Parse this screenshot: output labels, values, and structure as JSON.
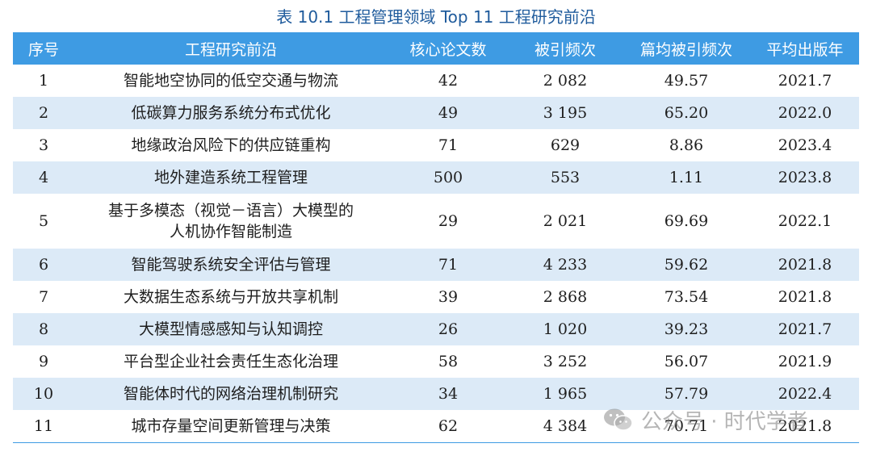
{
  "caption": "表 10.1    工程管理领域 Top 11 工程研究前沿",
  "headers": [
    "序号",
    "工程研究前沿",
    "核心论文数",
    "被引频次",
    "篇均被引频次",
    "平均出版年"
  ],
  "rows": [
    {
      "id": "1",
      "topic": "智能地空协同的低空交通与物流",
      "papers": "42",
      "citations": "2 082",
      "avg": "49.57",
      "year": "2021.7"
    },
    {
      "id": "2",
      "topic": "低碳算力服务系统分布式优化",
      "papers": "49",
      "citations": "3 195",
      "avg": "65.20",
      "year": "2022.0"
    },
    {
      "id": "3",
      "topic": "地缘政治风险下的供应链重构",
      "papers": "71",
      "citations": "629",
      "avg": "8.86",
      "year": "2023.4"
    },
    {
      "id": "4",
      "topic": "地外建造系统工程管理",
      "papers": "500",
      "citations": "553",
      "avg": "1.11",
      "year": "2023.8"
    },
    {
      "id": "5",
      "topic_line1": "基于多模态（视觉－语言）大模型的",
      "topic_line2": "人机协作智能制造",
      "papers": "29",
      "citations": "2 021",
      "avg": "69.69",
      "year": "2022.1"
    },
    {
      "id": "6",
      "topic": "智能驾驶系统安全评估与管理",
      "papers": "71",
      "citations": "4 233",
      "avg": "59.62",
      "year": "2021.8"
    },
    {
      "id": "7",
      "topic": "大数据生态系统与开放共享机制",
      "papers": "39",
      "citations": "2 868",
      "avg": "73.54",
      "year": "2021.8"
    },
    {
      "id": "8",
      "topic": "大模型情感感知与认知调控",
      "papers": "26",
      "citations": "1 020",
      "avg": "39.23",
      "year": "2021.7"
    },
    {
      "id": "9",
      "topic": "平台型企业社会责任生态化治理",
      "papers": "58",
      "citations": "3 252",
      "avg": "56.07",
      "year": "2021.9"
    },
    {
      "id": "10",
      "topic": "智能体时代的网络治理机制研究",
      "papers": "34",
      "citations": "1 965",
      "avg": "57.79",
      "year": "2022.4"
    },
    {
      "id": "11",
      "topic": "城市存量空间更新管理与决策",
      "papers": "62",
      "citations": "4 384",
      "avg": "70.71",
      "year": "2021.8"
    }
  ],
  "watermark": {
    "text": "公众号 · 时代学者",
    "icon": "wechat-icon"
  },
  "colors": {
    "header_bg": "#3e9be3",
    "alt_row_bg": "#dceaf7",
    "caption": "#1f5b9c"
  }
}
